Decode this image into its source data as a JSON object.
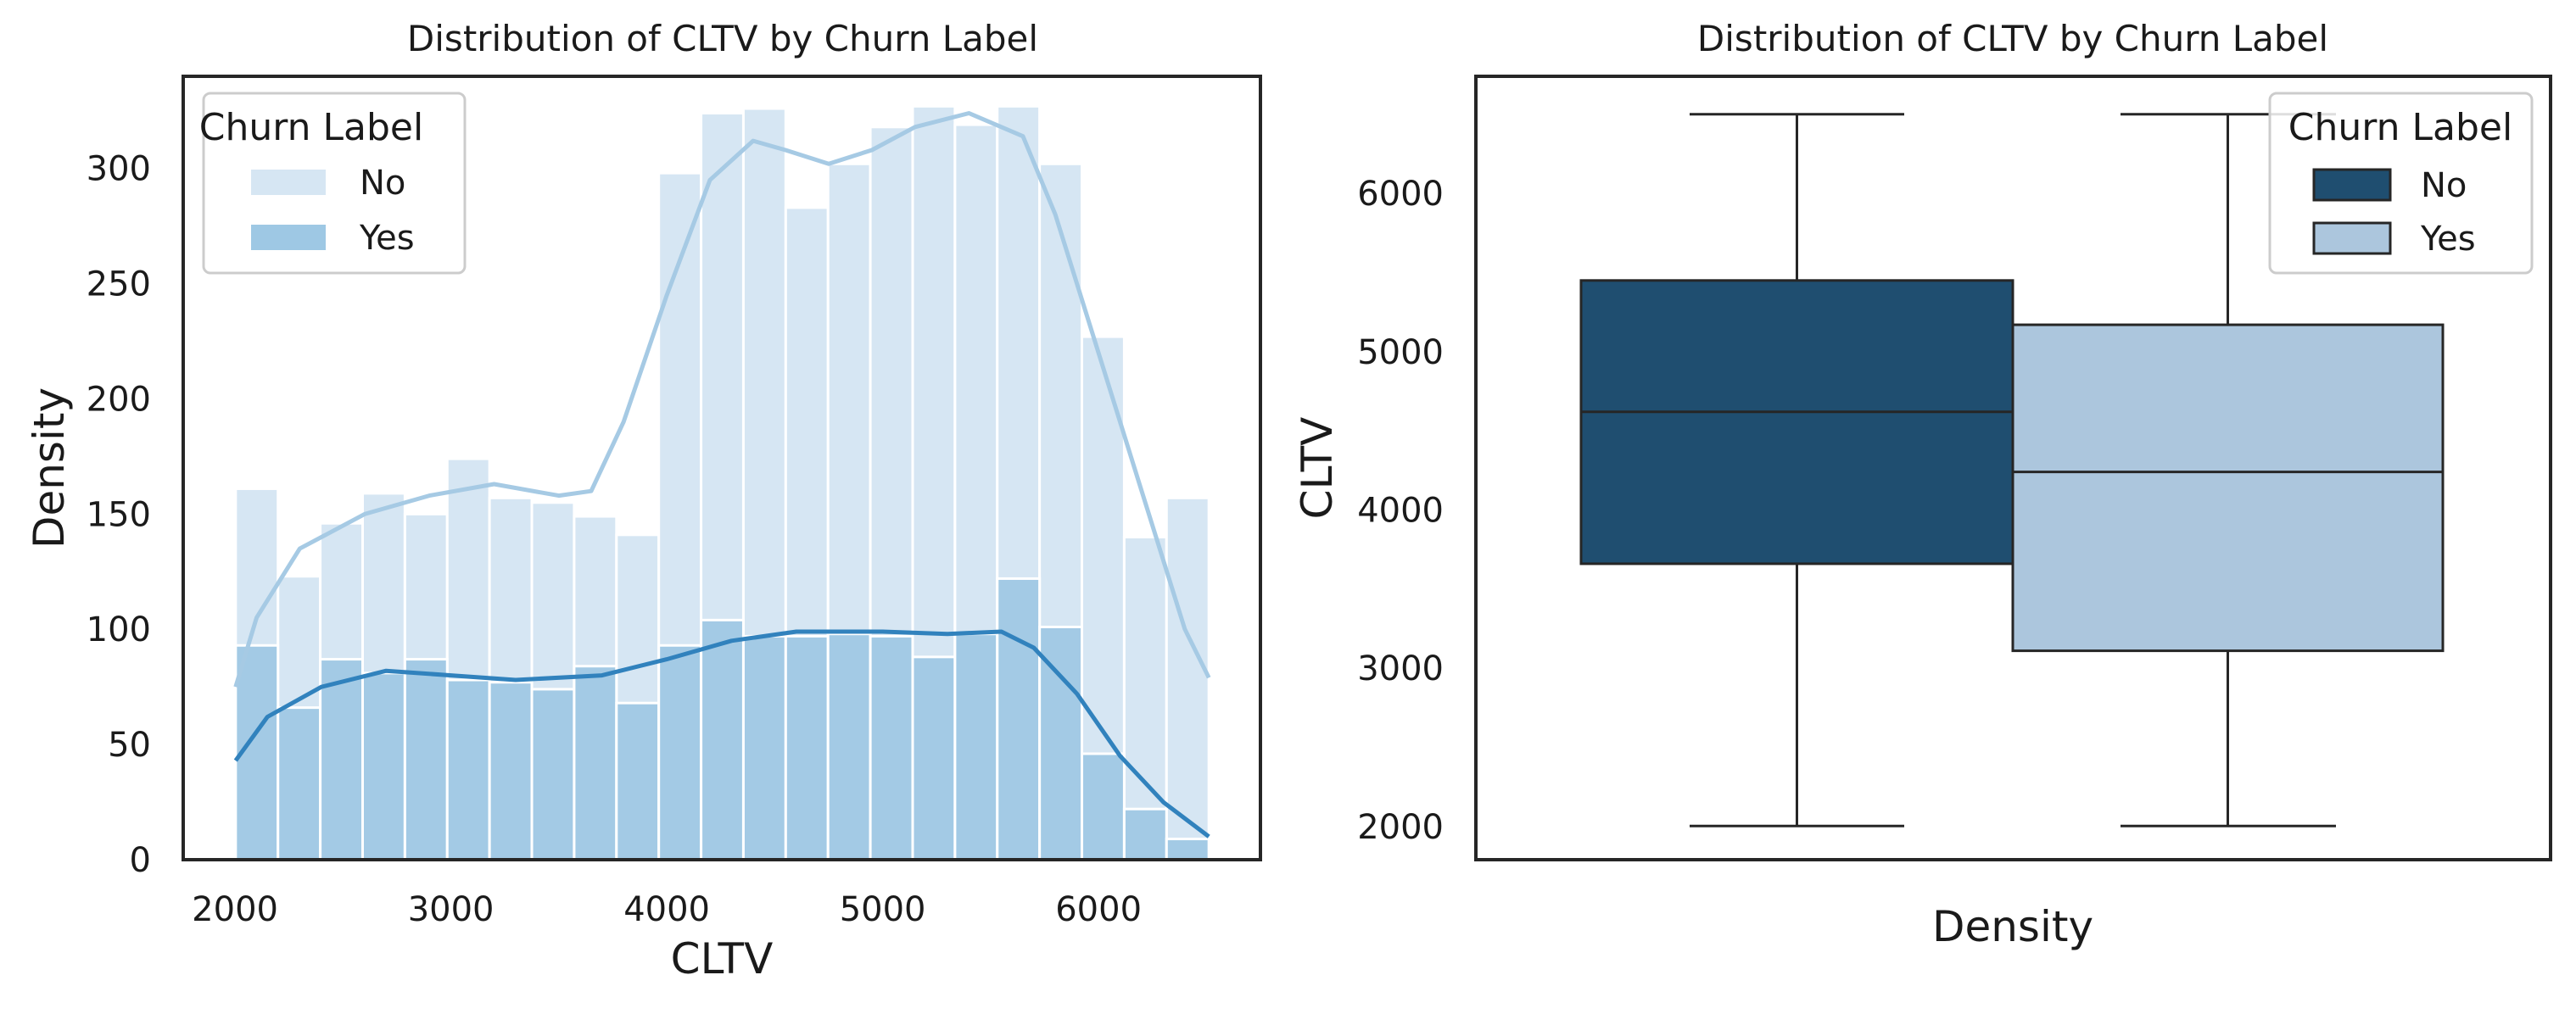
{
  "chart_data": [
    {
      "type": "histogram",
      "title": "Distribution of CLTV by Churn Label",
      "xlabel": "CLTV",
      "ylabel": "Density",
      "xlim": [
        1760,
        6750
      ],
      "ylim": [
        0,
        340
      ],
      "xticks": [
        2000,
        3000,
        4000,
        5000,
        6000
      ],
      "yticks": [
        0,
        50,
        100,
        150,
        200,
        250,
        300
      ],
      "bin_edges": [
        2003,
        2199,
        2395,
        2591,
        2787,
        2983,
        3179,
        3375,
        3571,
        3767,
        3963,
        4159,
        4355,
        4551,
        4747,
        4943,
        5139,
        5335,
        5531,
        5727,
        5923,
        6119,
        6315,
        6511
      ],
      "legend": {
        "title": "Churn Label",
        "position": "top-left"
      },
      "series": [
        {
          "name": "No",
          "color": "#c6dbef",
          "kde_color": "#a6cae4",
          "counts": [
            161,
            123,
            146,
            159,
            150,
            174,
            157,
            155,
            149,
            141,
            298,
            324,
            326,
            283,
            302,
            318,
            327,
            319,
            327,
            302,
            227,
            140,
            157
          ],
          "kde": [
            [
              2003,
              75
            ],
            [
              2100,
              105
            ],
            [
              2300,
              135
            ],
            [
              2600,
              150
            ],
            [
              2900,
              158
            ],
            [
              3200,
              163
            ],
            [
              3500,
              158
            ],
            [
              3650,
              160
            ],
            [
              3800,
              190
            ],
            [
              4000,
              245
            ],
            [
              4200,
              295
            ],
            [
              4400,
              312
            ],
            [
              4550,
              308
            ],
            [
              4750,
              302
            ],
            [
              4950,
              308
            ],
            [
              5150,
              318
            ],
            [
              5400,
              324
            ],
            [
              5650,
              314
            ],
            [
              5800,
              280
            ],
            [
              6000,
              220
            ],
            [
              6200,
              160
            ],
            [
              6400,
              100
            ],
            [
              6511,
              79
            ]
          ]
        },
        {
          "name": "Yes",
          "color": "#6baed6",
          "kde_color": "#3182bd",
          "counts": [
            93,
            66,
            87,
            81,
            87,
            78,
            77,
            74,
            84,
            68,
            93,
            104,
            97,
            97,
            98,
            97,
            88,
            98,
            122,
            101,
            46,
            22,
            9
          ],
          "kde": [
            [
              2003,
              43
            ],
            [
              2150,
              62
            ],
            [
              2400,
              75
            ],
            [
              2700,
              82
            ],
            [
              3000,
              80
            ],
            [
              3300,
              78
            ],
            [
              3700,
              80
            ],
            [
              4000,
              87
            ],
            [
              4300,
              95
            ],
            [
              4600,
              99
            ],
            [
              5000,
              99
            ],
            [
              5300,
              98
            ],
            [
              5550,
              99
            ],
            [
              5700,
              92
            ],
            [
              5900,
              72
            ],
            [
              6100,
              45
            ],
            [
              6300,
              25
            ],
            [
              6511,
              10
            ]
          ]
        }
      ]
    },
    {
      "type": "box",
      "title": "Distribution of CLTV by Churn Label",
      "xlabel": "Density",
      "ylabel": "CLTV",
      "ylim": [
        1790,
        6740
      ],
      "yticks": [
        2000,
        3000,
        4000,
        5000,
        6000
      ],
      "legend": {
        "title": "Churn Label",
        "position": "top-right"
      },
      "series": [
        {
          "name": "No",
          "color": "#1f4e70",
          "min": 2003,
          "q1": 3660,
          "median": 4620,
          "q3": 5450,
          "max": 6500
        },
        {
          "name": "Yes",
          "color": "#acc6dd",
          "min": 2003,
          "q1": 3110,
          "median": 4240,
          "q3": 5170,
          "max": 6500
        }
      ]
    }
  ]
}
